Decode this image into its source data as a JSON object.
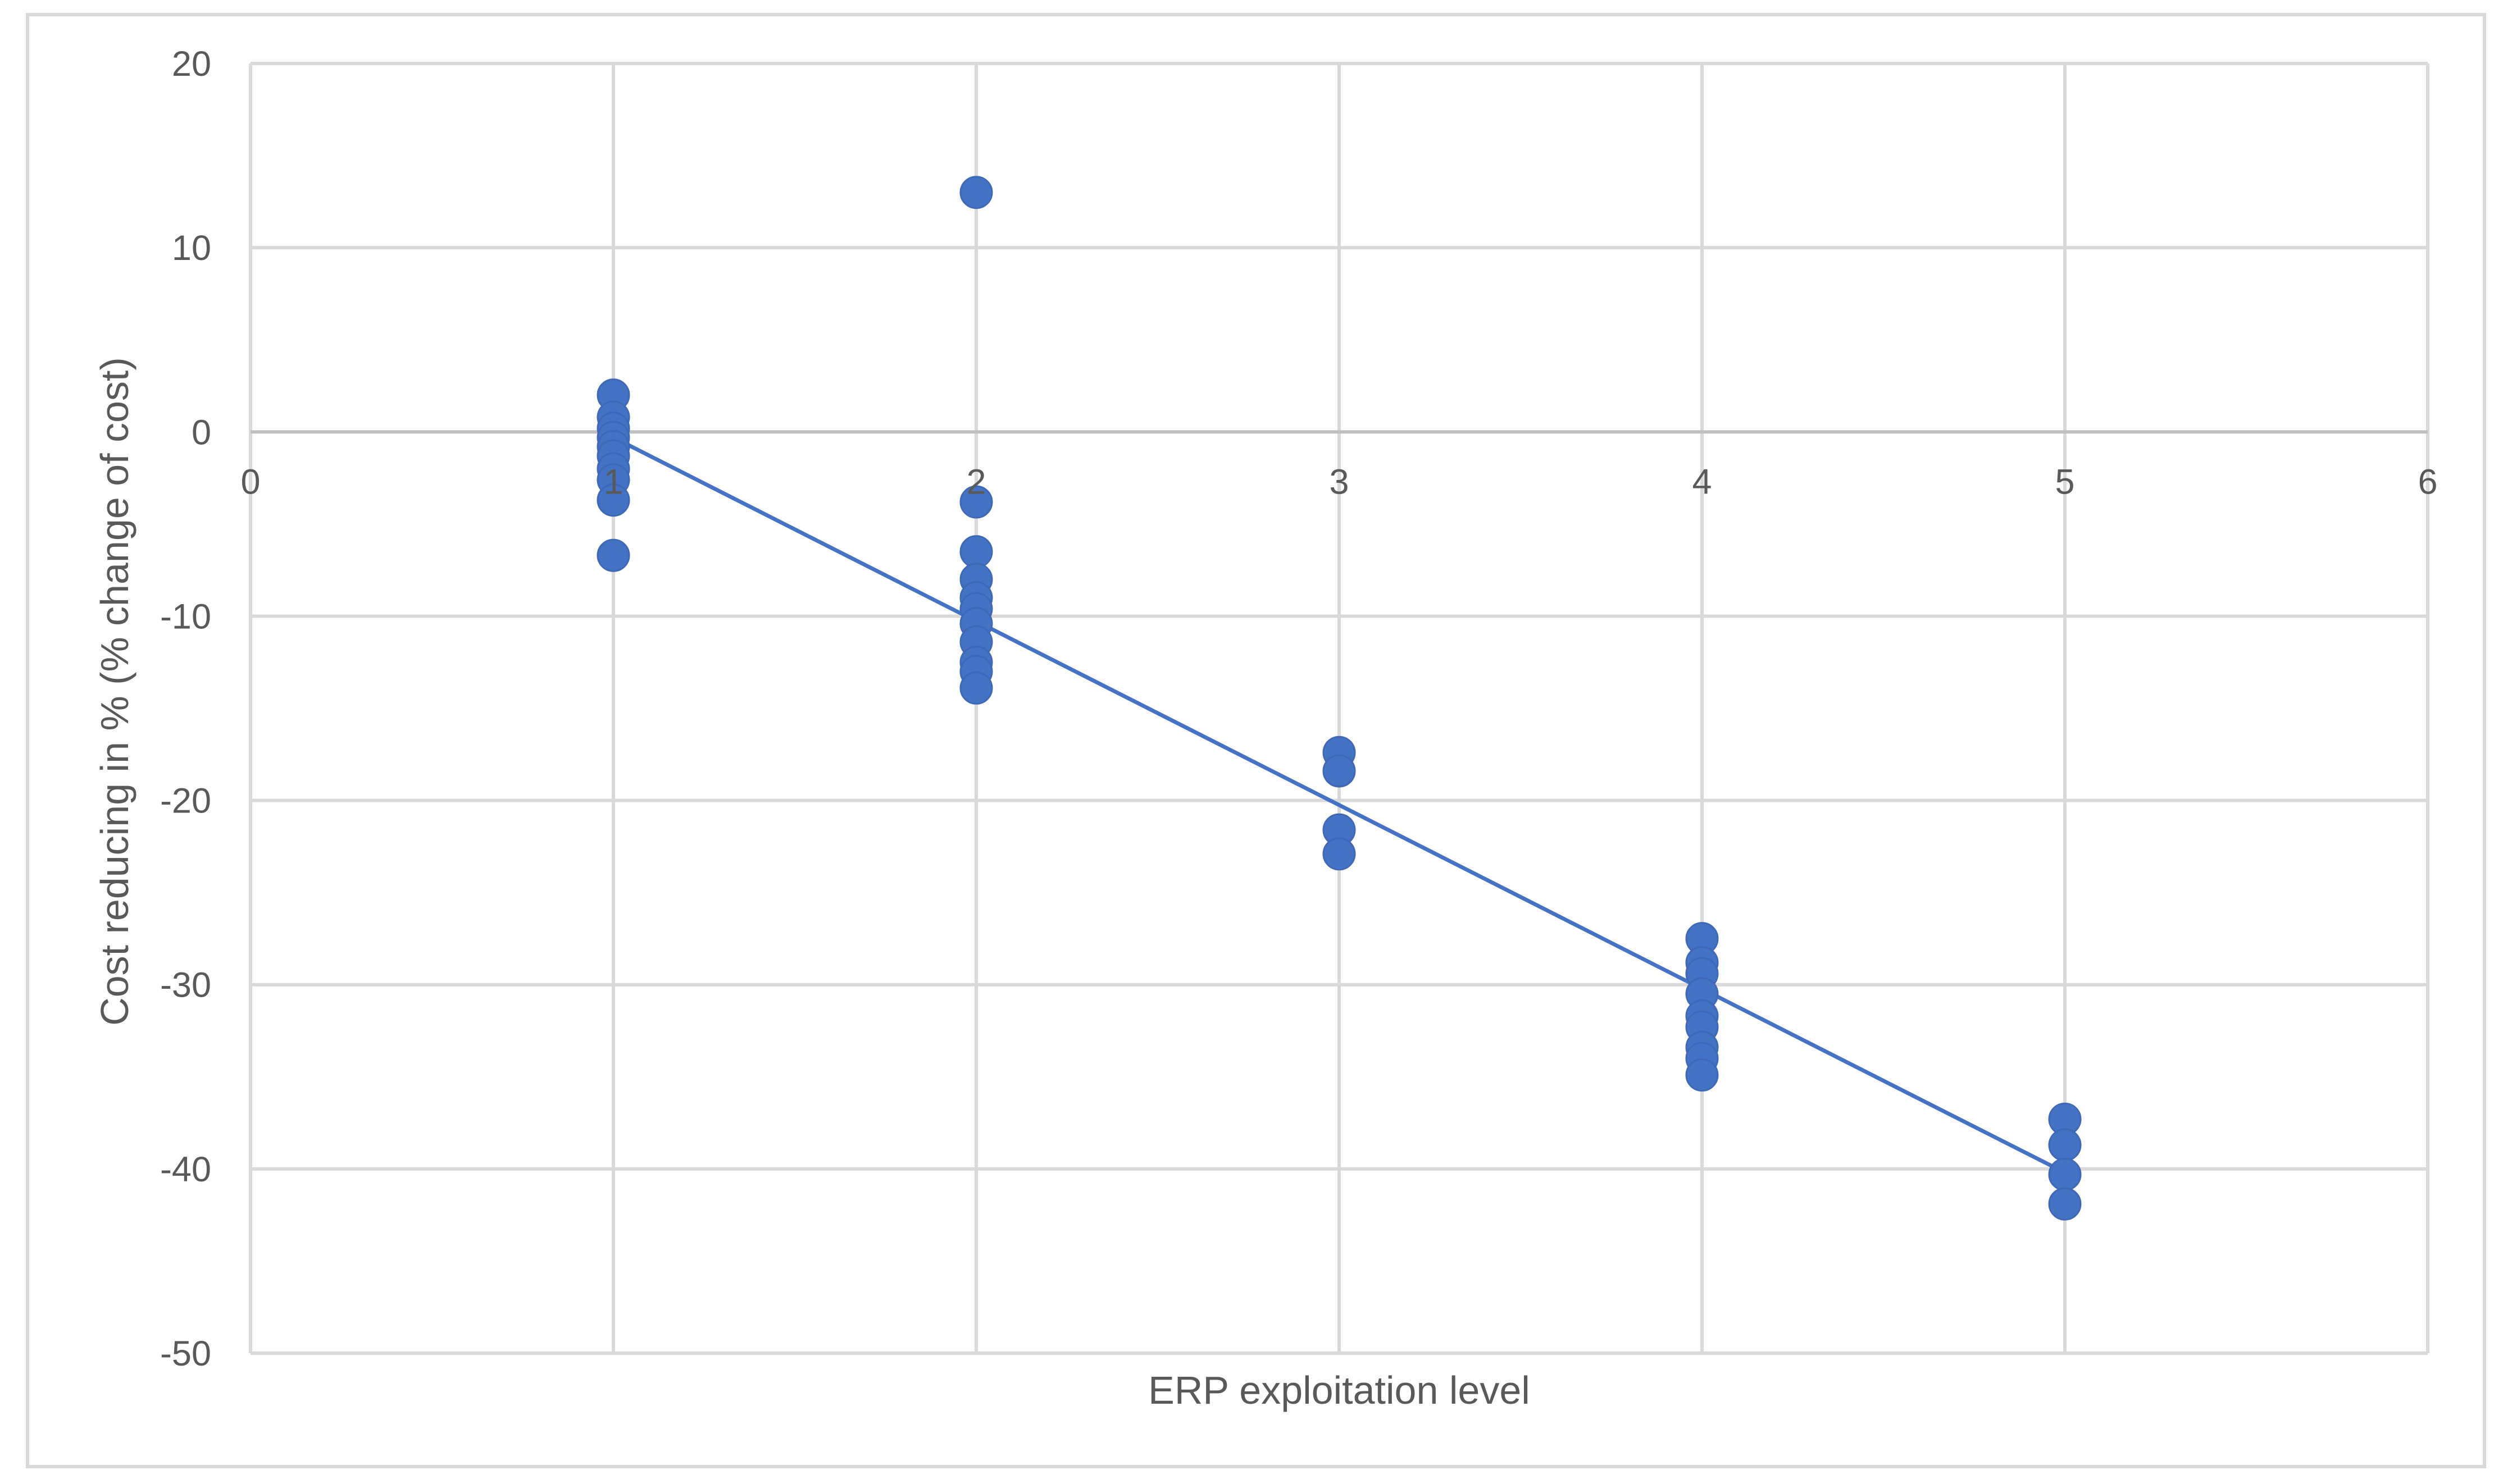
{
  "chart_data": {
    "type": "scatter",
    "title": "",
    "xlabel": "ERP exploitation level",
    "ylabel": "Cost reducing in % (% change of cost)",
    "xlim": [
      0,
      6
    ],
    "ylim": [
      -50,
      20
    ],
    "xticks": [
      "0",
      "1",
      "2",
      "3",
      "4",
      "5",
      "6"
    ],
    "yticks": [
      "20",
      "10",
      "0",
      "-10",
      "-20",
      "-30",
      "-40",
      "-50"
    ],
    "grid": true,
    "legend": "none",
    "colors": {
      "points": "#4472c4",
      "trendline": "#4472c4",
      "grid": "#d9d9d9"
    },
    "series": [
      {
        "points": [
          [
            1,
            2.0
          ],
          [
            1,
            0.8
          ],
          [
            1,
            0.2
          ],
          [
            1,
            -0.3
          ],
          [
            1,
            -0.8
          ],
          [
            1,
            -1.3
          ],
          [
            1,
            -2.0
          ],
          [
            1,
            -2.6
          ],
          [
            1,
            -3.7
          ],
          [
            1,
            -6.7
          ],
          [
            2,
            13.0
          ],
          [
            2,
            -3.8
          ],
          [
            2,
            -6.5
          ],
          [
            2,
            -8.0
          ],
          [
            2,
            -9.0
          ],
          [
            2,
            -9.6
          ],
          [
            2,
            -10.4
          ],
          [
            2,
            -11.4
          ],
          [
            2,
            -12.5
          ],
          [
            2,
            -13.0
          ],
          [
            2,
            -13.9
          ],
          [
            3,
            -17.4
          ],
          [
            3,
            -18.4
          ],
          [
            3,
            -21.6
          ],
          [
            3,
            -22.9
          ],
          [
            4,
            -27.5
          ],
          [
            4,
            -28.8
          ],
          [
            4,
            -29.4
          ],
          [
            4,
            -30.5
          ],
          [
            4,
            -31.7
          ],
          [
            4,
            -32.3
          ],
          [
            4,
            -33.4
          ],
          [
            4,
            -34.0
          ],
          [
            4,
            -34.9
          ],
          [
            5,
            -37.3
          ],
          [
            5,
            -38.7
          ],
          [
            5,
            -40.3
          ],
          [
            5,
            -41.9
          ]
        ]
      }
    ],
    "trendline": {
      "type": "linear",
      "x": [
        1,
        5
      ],
      "y": [
        -0.3,
        -40.2
      ]
    }
  }
}
